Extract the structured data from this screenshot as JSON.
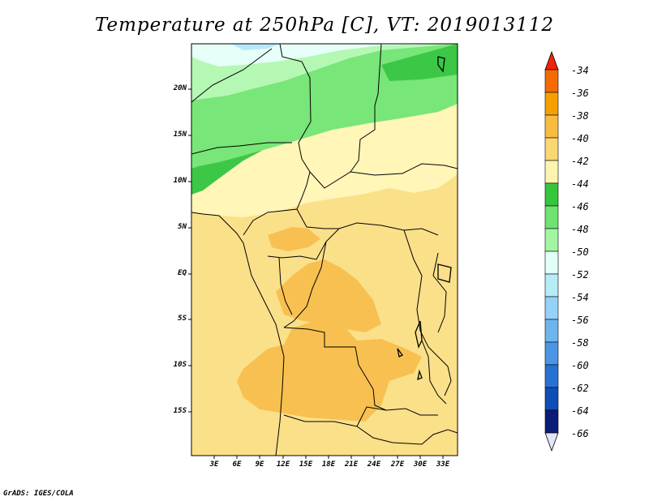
{
  "title": "Temperature at 250hPa [C], VT: 2019013112",
  "footer": "GrADS: IGES/COLA",
  "axes": {
    "lat_labels": [
      "20N",
      "15N",
      "10N",
      "5N",
      "EQ",
      "5S",
      "10S",
      "15S"
    ],
    "lon_labels": [
      "3E",
      "6E",
      "9E",
      "12E",
      "15E",
      "18E",
      "21E",
      "24E",
      "27E",
      "30E",
      "33E"
    ]
  },
  "legend": {
    "labels": [
      "-34",
      "-36",
      "-38",
      "-40",
      "-42",
      "-44",
      "-46",
      "-48",
      "-50",
      "-52",
      "-54",
      "-56",
      "-58",
      "-60",
      "-62",
      "-64",
      "-66"
    ],
    "colors": [
      "#f0240a",
      "#f56a05",
      "#f5a000",
      "#f8bd40",
      "#fbd772",
      "#fdf4b0",
      "#36c63c",
      "#6fe270",
      "#a2f6a2",
      "#e2fff8",
      "#b4ecf8",
      "#94d2f8",
      "#6db5ee",
      "#4b95e4",
      "#2871d4",
      "#0f4db8",
      "#0a1c78",
      "#e4e4f8"
    ]
  },
  "regions": {
    "colors": {
      "green_dark": "#3cc846",
      "green_mid": "#78e678",
      "green_light": "#b4f8b4",
      "cyan": "#e6fff8",
      "blue_light": "#b8e8fa",
      "yellow_pale": "#fff6b8",
      "yellow_light": "#fbe08a",
      "orange_light": "#f8c050"
    }
  }
}
